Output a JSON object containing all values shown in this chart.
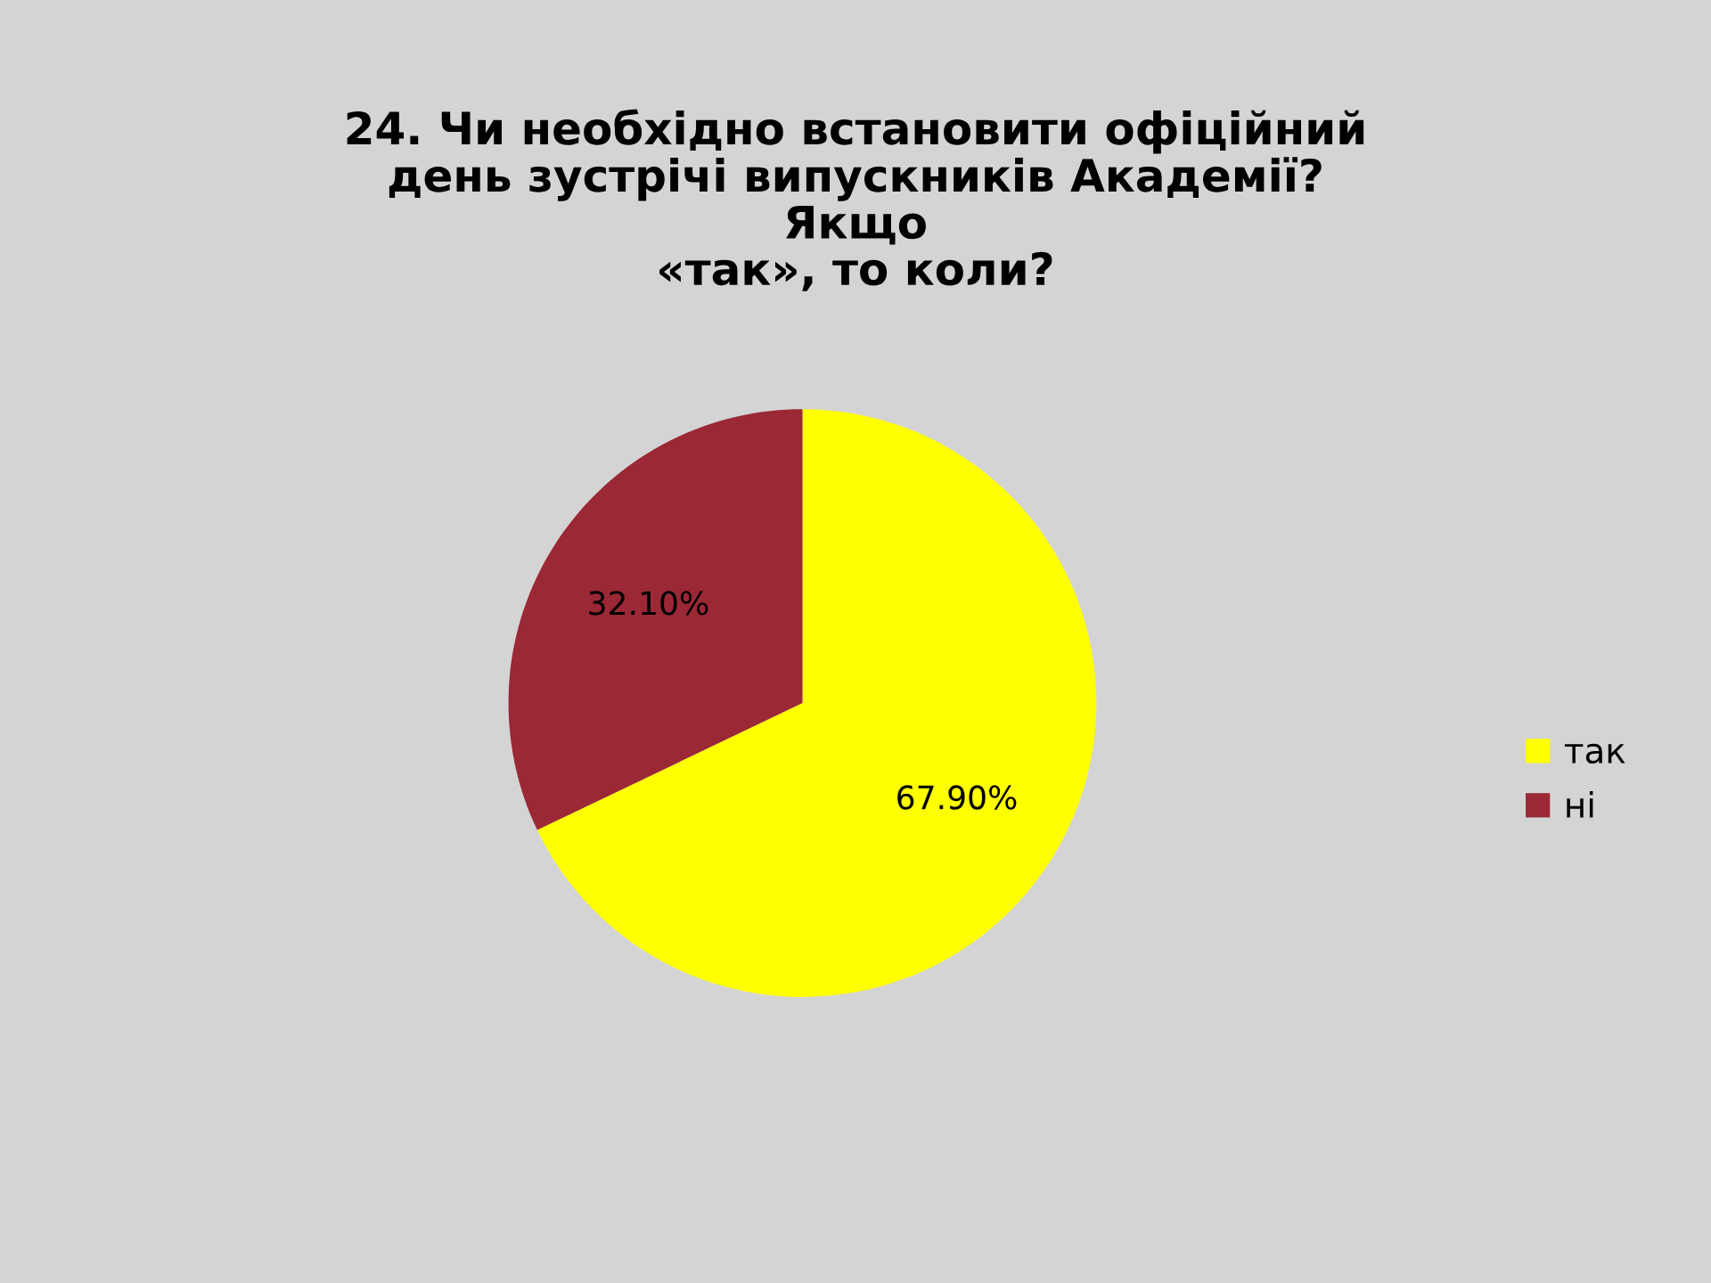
{
  "chart_data": {
    "type": "pie",
    "title": "24. Чи необхідно встановити офіційний\nдень зустрічі випускників Академії?\nЯкщо\n«так», то коли?",
    "categories": [
      "так",
      "ні"
    ],
    "values": [
      67.9,
      32.1
    ],
    "colors": [
      "#ffff00",
      "#9b2835"
    ],
    "value_labels": [
      "67.90%",
      "32.10%"
    ],
    "legend": "right"
  }
}
